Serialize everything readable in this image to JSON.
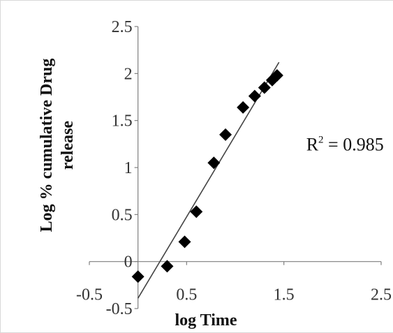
{
  "chart_data": {
    "type": "scatter",
    "xlabel": "log Time",
    "ylabel_lines": [
      "Log % cumulative  Drug",
      "release"
    ],
    "xlim": [
      -0.5,
      2.5
    ],
    "ylim": [
      -0.5,
      2.5
    ],
    "x_ticks": [
      "-0.5",
      "0.5",
      "1.5",
      "2.5"
    ],
    "x_tick_values": [
      -0.5,
      0.5,
      1.5,
      2.5
    ],
    "y_ticks": [
      "-0.5",
      "0",
      "0.5",
      "1",
      "1.5",
      "2",
      "2.5"
    ],
    "y_tick_values": [
      -0.5,
      0,
      0.5,
      1,
      1.5,
      2,
      2.5
    ],
    "series": [
      {
        "marker": "diamond",
        "color": "#000000",
        "points": [
          {
            "x": 0.0,
            "y": -0.16
          },
          {
            "x": 0.3,
            "y": -0.05
          },
          {
            "x": 0.48,
            "y": 0.21
          },
          {
            "x": 0.6,
            "y": 0.53
          },
          {
            "x": 0.78,
            "y": 1.05
          },
          {
            "x": 0.9,
            "y": 1.35
          },
          {
            "x": 1.08,
            "y": 1.64
          },
          {
            "x": 1.2,
            "y": 1.76
          },
          {
            "x": 1.3,
            "y": 1.85
          },
          {
            "x": 1.38,
            "y": 1.93
          },
          {
            "x": 1.43,
            "y": 1.98
          }
        ]
      }
    ],
    "trendline": {
      "color": "#444444",
      "x": [
        0.0,
        1.45
      ],
      "y": [
        -0.39,
        2.12
      ]
    },
    "annotation": {
      "text_prefix": "R",
      "superscript": "2",
      "text_suffix": " = 0.985",
      "x": 1.73,
      "y": 1.25
    },
    "grid": false
  }
}
